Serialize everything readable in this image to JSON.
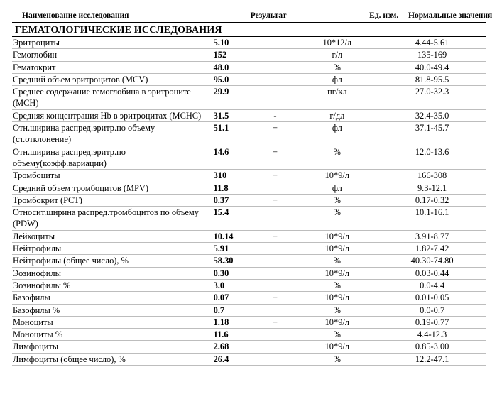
{
  "header": {
    "name": "Наименование исследования",
    "result": "Результат",
    "unit": "Ед. изм.",
    "norm": "Нормальные значения"
  },
  "section_title": "ГЕМАТОЛОГИЧЕСКИЕ ИССЛЕДОВАНИЯ",
  "rows": [
    {
      "name": "Эритроциты",
      "value": "5.10",
      "flag": "",
      "unit": "10*12/л",
      "norm": "4.44-5.61"
    },
    {
      "name": "Гемоглобин",
      "value": "152",
      "flag": "",
      "unit": "г/л",
      "norm": "135-169"
    },
    {
      "name": "Гематокрит",
      "value": "48.0",
      "flag": "",
      "unit": "%",
      "norm": "40.0-49.4"
    },
    {
      "name": "Средний объем эритроцитов (MCV)",
      "value": "95.0",
      "flag": "",
      "unit": "фл",
      "norm": "81.8-95.5"
    },
    {
      "name": "Среднее содержание гемоглобина в эритроците (MCH)",
      "value": "29.9",
      "flag": "",
      "unit": "пг/кл",
      "norm": "27.0-32.3"
    },
    {
      "name": "Средняя концентрация Hb в эритроцитах (MCHC)",
      "value": "31.5",
      "flag": "-",
      "unit": "г/дл",
      "norm": "32.4-35.0"
    },
    {
      "name": "Отн.ширина распред.эритр.по объему (ст.отклонение)",
      "value": "51.1",
      "flag": "+",
      "unit": "фл",
      "norm": "37.1-45.7"
    },
    {
      "name": "Отн.ширина распред.эритр.по объему(коэфф.вариации)",
      "value": "14.6",
      "flag": "+",
      "unit": "%",
      "norm": "12.0-13.6"
    },
    {
      "name": "Тромбоциты",
      "value": "310",
      "flag": "+",
      "unit": "10*9/л",
      "norm": "166-308"
    },
    {
      "name": "Средний объем тромбоцитов (MPV)",
      "value": "11.8",
      "flag": "",
      "unit": "фл",
      "norm": "9.3-12.1"
    },
    {
      "name": "Тромбокрит (PCT)",
      "value": "0.37",
      "flag": "+",
      "unit": "%",
      "norm": "0.17-0.32"
    },
    {
      "name": "Относит.ширина распред.тромбоцитов по объему (PDW)",
      "value": "15.4",
      "flag": "",
      "unit": "%",
      "norm": "10.1-16.1"
    },
    {
      "name": "Лейкоциты",
      "value": "10.14",
      "flag": "+",
      "unit": "10*9/л",
      "norm": "3.91-8.77"
    },
    {
      "name": "Нейтрофилы",
      "value": "5.91",
      "flag": "",
      "unit": "10*9/л",
      "norm": "1.82-7.42"
    },
    {
      "name": "Нейтрофилы (общее число), %",
      "value": "58.30",
      "flag": "",
      "unit": "%",
      "norm": "40.30-74.80"
    },
    {
      "name": "Эозинофилы",
      "value": "0.30",
      "flag": "",
      "unit": "10*9/л",
      "norm": "0.03-0.44"
    },
    {
      "name": "Эозинофилы %",
      "value": "3.0",
      "flag": "",
      "unit": "%",
      "norm": "0.0-4.4"
    },
    {
      "name": "Базофилы",
      "value": "0.07",
      "flag": "+",
      "unit": "10*9/л",
      "norm": "0.01-0.05"
    },
    {
      "name": "Базофилы %",
      "value": "0.7",
      "flag": "",
      "unit": "%",
      "norm": "0.0-0.7"
    },
    {
      "name": "Моноциты",
      "value": "1.18",
      "flag": "+",
      "unit": "10*9/л",
      "norm": "0.19-0.77"
    },
    {
      "name": "Моноциты %",
      "value": "11.6",
      "flag": "",
      "unit": "%",
      "norm": "4.4-12.3"
    },
    {
      "name": "Лимфоциты",
      "value": "2.68",
      "flag": "",
      "unit": "10*9/л",
      "norm": "0.85-3.00"
    },
    {
      "name": "Лимфоциты (общее число), %",
      "value": "26.4",
      "flag": "",
      "unit": "%",
      "norm": "12.2-47.1"
    }
  ]
}
